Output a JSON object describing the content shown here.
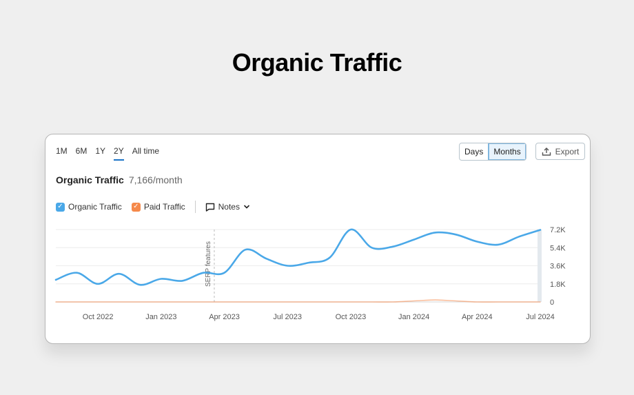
{
  "headline": "Organic Traffic",
  "range_tabs": [
    {
      "label": "1M",
      "active": false
    },
    {
      "label": "6M",
      "active": false
    },
    {
      "label": "1Y",
      "active": false
    },
    {
      "label": "2Y",
      "active": true
    },
    {
      "label": "All time",
      "active": false
    }
  ],
  "granularity": {
    "days_label": "Days",
    "months_label": "Months",
    "selected": "Months"
  },
  "export_label": "Export",
  "summary": {
    "title": "Organic Traffic",
    "value": "7,166/month"
  },
  "legend": {
    "organic_label": "Organic Traffic",
    "paid_label": "Paid Traffic",
    "notes_label": "Notes",
    "organic_checked": true,
    "paid_checked": true
  },
  "colors": {
    "organic": "#4aa8e8",
    "paid": "#f5894a",
    "accent": "#1a73c7"
  },
  "icons": {
    "export": "upload-icon",
    "notes": "comment-icon",
    "dropdown": "chevron-down-icon",
    "check": "check-icon"
  },
  "chart_data": {
    "type": "line",
    "x_start": "2022-08",
    "x_end": "2024-07",
    "x_ticks": [
      "Oct 2022",
      "Jan 2023",
      "Apr 2023",
      "Jul 2023",
      "Oct 2023",
      "Jan 2024",
      "Apr 2024",
      "Jul 2024"
    ],
    "y_ticks": [
      "0",
      "1.8K",
      "3.6K",
      "5.4K",
      "7.2K"
    ],
    "ylim": [
      0,
      7200
    ],
    "grid": true,
    "annotation": {
      "label": "SERP features",
      "at": "2023-03"
    },
    "series": [
      {
        "name": "Organic Traffic",
        "x": [
          "2022-08",
          "2022-09",
          "2022-10",
          "2022-11",
          "2022-12",
          "2023-01",
          "2023-02",
          "2023-03",
          "2023-04",
          "2023-05",
          "2023-06",
          "2023-07",
          "2023-08",
          "2023-09",
          "2023-10",
          "2023-11",
          "2023-12",
          "2024-01",
          "2024-02",
          "2024-03",
          "2024-04",
          "2024-05",
          "2024-06",
          "2024-07"
        ],
        "values": [
          2200,
          2900,
          1800,
          2800,
          1700,
          2300,
          2100,
          2900,
          2900,
          5200,
          4300,
          3600,
          3900,
          4400,
          7200,
          5400,
          5500,
          6200,
          6900,
          6700,
          6000,
          5700,
          6500,
          7166
        ]
      },
      {
        "name": "Paid Traffic",
        "x": [
          "2022-08",
          "2022-09",
          "2022-10",
          "2022-11",
          "2022-12",
          "2023-01",
          "2023-02",
          "2023-03",
          "2023-04",
          "2023-05",
          "2023-06",
          "2023-07",
          "2023-08",
          "2023-09",
          "2023-10",
          "2023-11",
          "2023-12",
          "2024-01",
          "2024-02",
          "2024-03",
          "2024-04",
          "2024-05",
          "2024-06",
          "2024-07"
        ],
        "values": [
          0,
          0,
          0,
          0,
          0,
          0,
          0,
          0,
          0,
          0,
          0,
          0,
          0,
          0,
          0,
          0,
          0,
          100,
          200,
          100,
          0,
          0,
          0,
          0
        ]
      }
    ]
  }
}
